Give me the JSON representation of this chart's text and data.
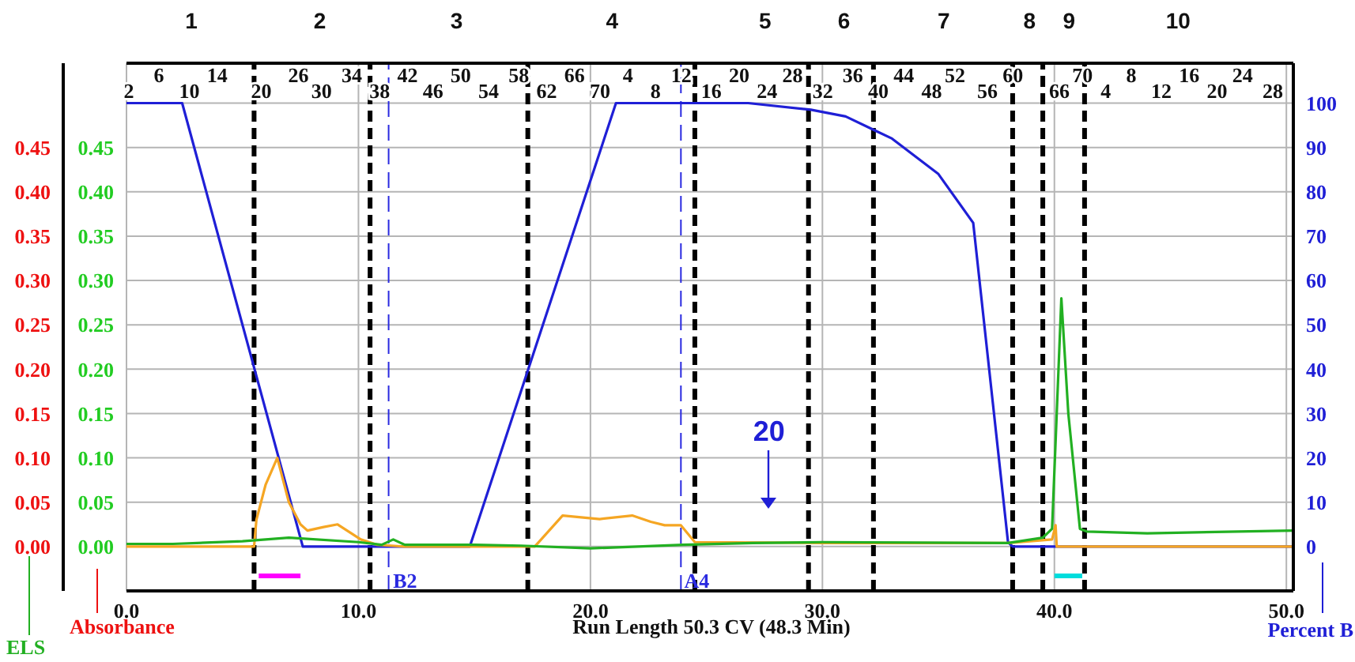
{
  "chart_data": {
    "type": "line",
    "xlabel": "Run Length 50.3 CV (48.3 Min)",
    "ylabel": "ELS",
    "y3label": "Absorbance",
    "y2label": "Percent B",
    "xlim": [
      0,
      50.3
    ],
    "xticks": [
      {
        "value": 0,
        "label": "0.0"
      },
      {
        "value": 10,
        "label": "10.0"
      },
      {
        "value": 20,
        "label": "20.0"
      },
      {
        "value": 30,
        "label": "30.0"
      },
      {
        "value": 40,
        "label": "40.0"
      },
      {
        "value": 50,
        "label": "50.0"
      }
    ],
    "ylim": [
      -0.05,
      0.545
    ],
    "yticks": [
      {
        "value": 0,
        "label": "0.00"
      },
      {
        "value": 0.05,
        "label": "0.05"
      },
      {
        "value": 0.1,
        "label": "0.10"
      },
      {
        "value": 0.15,
        "label": "0.15"
      },
      {
        "value": 0.2,
        "label": "0.20"
      },
      {
        "value": 0.25,
        "label": "0.25"
      },
      {
        "value": 0.3,
        "label": "0.30"
      },
      {
        "value": 0.35,
        "label": "0.35"
      },
      {
        "value": 0.4,
        "label": "0.40"
      },
      {
        "value": 0.45,
        "label": "0.45"
      }
    ],
    "y3lim": [
      -0.05,
      0.545
    ],
    "y3ticks": [
      {
        "value": 0,
        "label": "0.00"
      },
      {
        "value": 0.05,
        "label": "0.05"
      },
      {
        "value": 0.1,
        "label": "0.10"
      },
      {
        "value": 0.15,
        "label": "0.15"
      },
      {
        "value": 0.2,
        "label": "0.20"
      },
      {
        "value": 0.25,
        "label": "0.25"
      },
      {
        "value": 0.3,
        "label": "0.30"
      },
      {
        "value": 0.35,
        "label": "0.35"
      },
      {
        "value": 0.4,
        "label": "0.40"
      },
      {
        "value": 0.45,
        "label": "0.45"
      }
    ],
    "y2lim": [
      -10,
      109
    ],
    "y2ticks": [
      0,
      10,
      20,
      30,
      40,
      50,
      60,
      70,
      80,
      90,
      100
    ],
    "grid": true,
    "series": [
      {
        "axis": "y2",
        "color": "#1f1fd6",
        "x": [
          0,
          2.4,
          7.6,
          14.8,
          21.1,
          26.8,
          29.5,
          31.0,
          32.2,
          33.0,
          35.0,
          36.5,
          38.0,
          38.2,
          50.3
        ],
        "values": [
          100,
          100,
          0,
          0,
          100,
          100,
          98.5,
          97,
          94,
          92,
          84,
          73,
          1,
          0,
          0
        ]
      },
      {
        "axis": "y3",
        "color": "#f5a623",
        "x": [
          0,
          5.5,
          5.6,
          6.0,
          6.5,
          7.0,
          7.5,
          7.8,
          8.5,
          9.1,
          10.1,
          10.8,
          12,
          17.6,
          18.8,
          20.4,
          21.8,
          22.6,
          23.2,
          23.9,
          24.5,
          30,
          38,
          39.9,
          40.05,
          40.1,
          50.3
        ],
        "values": [
          0,
          0,
          0.03,
          0.07,
          0.1,
          0.05,
          0.025,
          0.018,
          0.022,
          0.025,
          0.008,
          0.002,
          0,
          0,
          0.035,
          0.031,
          0.035,
          0.028,
          0.024,
          0.024,
          0.005,
          0.004,
          0.004,
          0.008,
          0.024,
          0,
          0
        ]
      },
      {
        "axis": "y",
        "color": "#22b022",
        "x": [
          0,
          2,
          5,
          7,
          10,
          11,
          11.5,
          12,
          15,
          17,
          20,
          24,
          27,
          30,
          38,
          39.5,
          39.9,
          40.3,
          40.6,
          41.1,
          41.4,
          44,
          50.3
        ],
        "values": [
          0.003,
          0.003,
          0.006,
          0.01,
          0.005,
          0.002,
          0.008,
          0.002,
          0.002,
          0.001,
          -0.002,
          0.002,
          0.004,
          0.005,
          0.004,
          0.01,
          0.02,
          0.28,
          0.15,
          0.02,
          0.017,
          0.015,
          0.018
        ]
      },
      {
        "axis": "y",
        "color": "#ff00ff",
        "x": [
          5.7,
          7.5
        ],
        "values": [
          -0.033,
          -0.033
        ]
      },
      {
        "axis": "y",
        "color": "#00dddd",
        "x": [
          40.0,
          41.2
        ],
        "values": [
          -0.033,
          -0.033
        ]
      }
    ],
    "ref_lines": [
      {
        "axis": "x",
        "value": 5.5,
        "color": "#000000",
        "line_style": "dashed"
      },
      {
        "axis": "x",
        "value": 10.5,
        "color": "#000000",
        "line_style": "dashed"
      },
      {
        "axis": "x",
        "value": 17.3,
        "color": "#000000",
        "line_style": "dashed"
      },
      {
        "axis": "x",
        "value": 24.5,
        "color": "#000000",
        "line_style": "dashed"
      },
      {
        "axis": "x",
        "value": 29.4,
        "color": "#000000",
        "line_style": "dashed"
      },
      {
        "axis": "x",
        "value": 32.2,
        "color": "#000000",
        "line_style": "dashed"
      },
      {
        "axis": "x",
        "value": 38.2,
        "color": "#000000",
        "line_style": "dashed"
      },
      {
        "axis": "x",
        "value": 39.5,
        "color": "#000000",
        "line_style": "dashed"
      },
      {
        "axis": "x",
        "value": 41.3,
        "color": "#000000",
        "line_style": "dashed"
      },
      {
        "axis": "x",
        "value": 11.3,
        "label": "B2",
        "color": "#2a2ae0",
        "line_style": "dashed"
      },
      {
        "axis": "x",
        "value": 23.9,
        "label": "A4",
        "color": "#2a2ae0",
        "line_style": "dashed"
      }
    ],
    "annotations": [
      "1 2 3 4 5 6 7 8 9 10",
      "6 14 26 34 42 50 58 66 4 12 20 28 36 44 52 60 70 8 16 24",
      "2 10 20 30 38 46 54 62 70 8 16 24 32 40 48 56 66 4 12 20 28",
      "20"
    ]
  }
}
